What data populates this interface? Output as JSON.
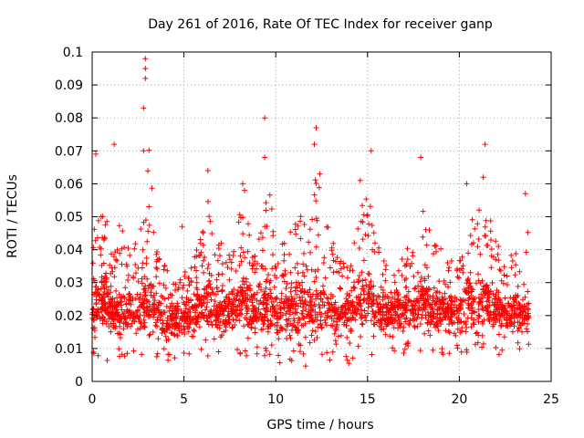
{
  "chart_data": {
    "type": "scatter",
    "title": "Day 261 of 2016, Rate Of TEC Index for receiver ganp",
    "xlabel": "GPS time / hours",
    "ylabel": "ROTI / TECUs",
    "xlim": [
      0,
      25
    ],
    "ylim": [
      0,
      0.1
    ],
    "xticks": [
      0,
      5,
      10,
      15,
      20,
      25
    ],
    "xtick_labels": [
      "0",
      "5",
      "10",
      "15",
      "20",
      "25"
    ],
    "yticks": [
      0,
      0.01,
      0.02,
      0.03,
      0.04,
      0.05,
      0.06,
      0.07,
      0.08,
      0.09,
      0.1
    ],
    "ytick_labels": [
      "0",
      "0.01",
      "0.02",
      "0.03",
      "0.04",
      "0.05",
      "0.06",
      "0.07",
      "0.08",
      "0.09",
      "0.1"
    ],
    "grid": true,
    "marker": "+",
    "color": "#ff0000",
    "x_data_range": [
      0,
      23.8
    ],
    "envelope": {
      "x": [
        0,
        0.3,
        0.8,
        1.2,
        1.5,
        2.0,
        2.5,
        2.8,
        3.0,
        3.5,
        4.0,
        4.5,
        5.0,
        5.5,
        6.0,
        6.3,
        6.8,
        7.2,
        7.6,
        8.0,
        8.4,
        8.8,
        9.3,
        9.7,
        10.0,
        10.5,
        11.0,
        11.4,
        11.8,
        12.2,
        12.6,
        13.0,
        13.5,
        14.0,
        14.5,
        14.8,
        15.0,
        15.4,
        15.8,
        16.2,
        16.6,
        17.0,
        17.5,
        18.0,
        18.5,
        19.0,
        19.5,
        20.0,
        20.5,
        21.0,
        21.4,
        21.8,
        22.2,
        22.6,
        23.0,
        23.4,
        23.8
      ],
      "max": [
        0.065,
        0.055,
        0.06,
        0.045,
        0.055,
        0.045,
        0.05,
        0.055,
        0.1,
        0.045,
        0.04,
        0.035,
        0.035,
        0.04,
        0.05,
        0.064,
        0.045,
        0.05,
        0.045,
        0.06,
        0.058,
        0.05,
        0.055,
        0.08,
        0.045,
        0.05,
        0.055,
        0.06,
        0.05,
        0.078,
        0.06,
        0.05,
        0.04,
        0.045,
        0.058,
        0.062,
        0.07,
        0.05,
        0.045,
        0.04,
        0.045,
        0.045,
        0.045,
        0.068,
        0.05,
        0.045,
        0.04,
        0.045,
        0.055,
        0.06,
        0.073,
        0.05,
        0.045,
        0.04,
        0.045,
        0.035,
        0.057
      ],
      "dense_top": [
        0.04,
        0.035,
        0.035,
        0.03,
        0.032,
        0.03,
        0.03,
        0.035,
        0.04,
        0.03,
        0.028,
        0.027,
        0.028,
        0.03,
        0.033,
        0.036,
        0.03,
        0.032,
        0.03,
        0.035,
        0.034,
        0.032,
        0.034,
        0.038,
        0.03,
        0.032,
        0.034,
        0.036,
        0.032,
        0.04,
        0.036,
        0.032,
        0.028,
        0.03,
        0.036,
        0.038,
        0.04,
        0.032,
        0.03,
        0.028,
        0.03,
        0.03,
        0.03,
        0.036,
        0.032,
        0.03,
        0.028,
        0.03,
        0.034,
        0.036,
        0.04,
        0.033,
        0.03,
        0.028,
        0.03,
        0.026,
        0.03
      ],
      "min": [
        0.006,
        0.007,
        0.006,
        0.007,
        0.006,
        0.007,
        0.007,
        0.006,
        0.006,
        0.007,
        0.006,
        0.006,
        0.006,
        0.007,
        0.007,
        0.007,
        0.007,
        0.007,
        0.007,
        0.008,
        0.007,
        0.007,
        0.007,
        0.006,
        0.005,
        0.006,
        0.006,
        0.005,
        0.004,
        0.004,
        0.006,
        0.006,
        0.006,
        0.005,
        0.007,
        0.007,
        0.008,
        0.008,
        0.008,
        0.008,
        0.008,
        0.008,
        0.008,
        0.008,
        0.008,
        0.008,
        0.008,
        0.008,
        0.008,
        0.008,
        0.008,
        0.008,
        0.008,
        0.008,
        0.008,
        0.008,
        0.008
      ]
    },
    "notable_points": [
      {
        "x": 0.2,
        "y": 0.069
      },
      {
        "x": 1.2,
        "y": 0.072
      },
      {
        "x": 2.9,
        "y": 0.098
      },
      {
        "x": 2.9,
        "y": 0.095
      },
      {
        "x": 2.9,
        "y": 0.092
      },
      {
        "x": 2.8,
        "y": 0.083
      },
      {
        "x": 2.8,
        "y": 0.07
      },
      {
        "x": 4.9,
        "y": 0.047
      },
      {
        "x": 6.3,
        "y": 0.064
      },
      {
        "x": 8.2,
        "y": 0.06
      },
      {
        "x": 8.3,
        "y": 0.058
      },
      {
        "x": 9.4,
        "y": 0.08
      },
      {
        "x": 9.4,
        "y": 0.068
      },
      {
        "x": 12.2,
        "y": 0.077
      },
      {
        "x": 12.1,
        "y": 0.072
      },
      {
        "x": 15.2,
        "y": 0.07
      },
      {
        "x": 17.9,
        "y": 0.068
      },
      {
        "x": 21.4,
        "y": 0.072
      },
      {
        "x": 21.3,
        "y": 0.062
      },
      {
        "x": 23.6,
        "y": 0.057
      },
      {
        "x": 20.4,
        "y": 0.06
      },
      {
        "x": 14.6,
        "y": 0.061
      },
      {
        "x": 12.4,
        "y": 0.063
      }
    ]
  }
}
